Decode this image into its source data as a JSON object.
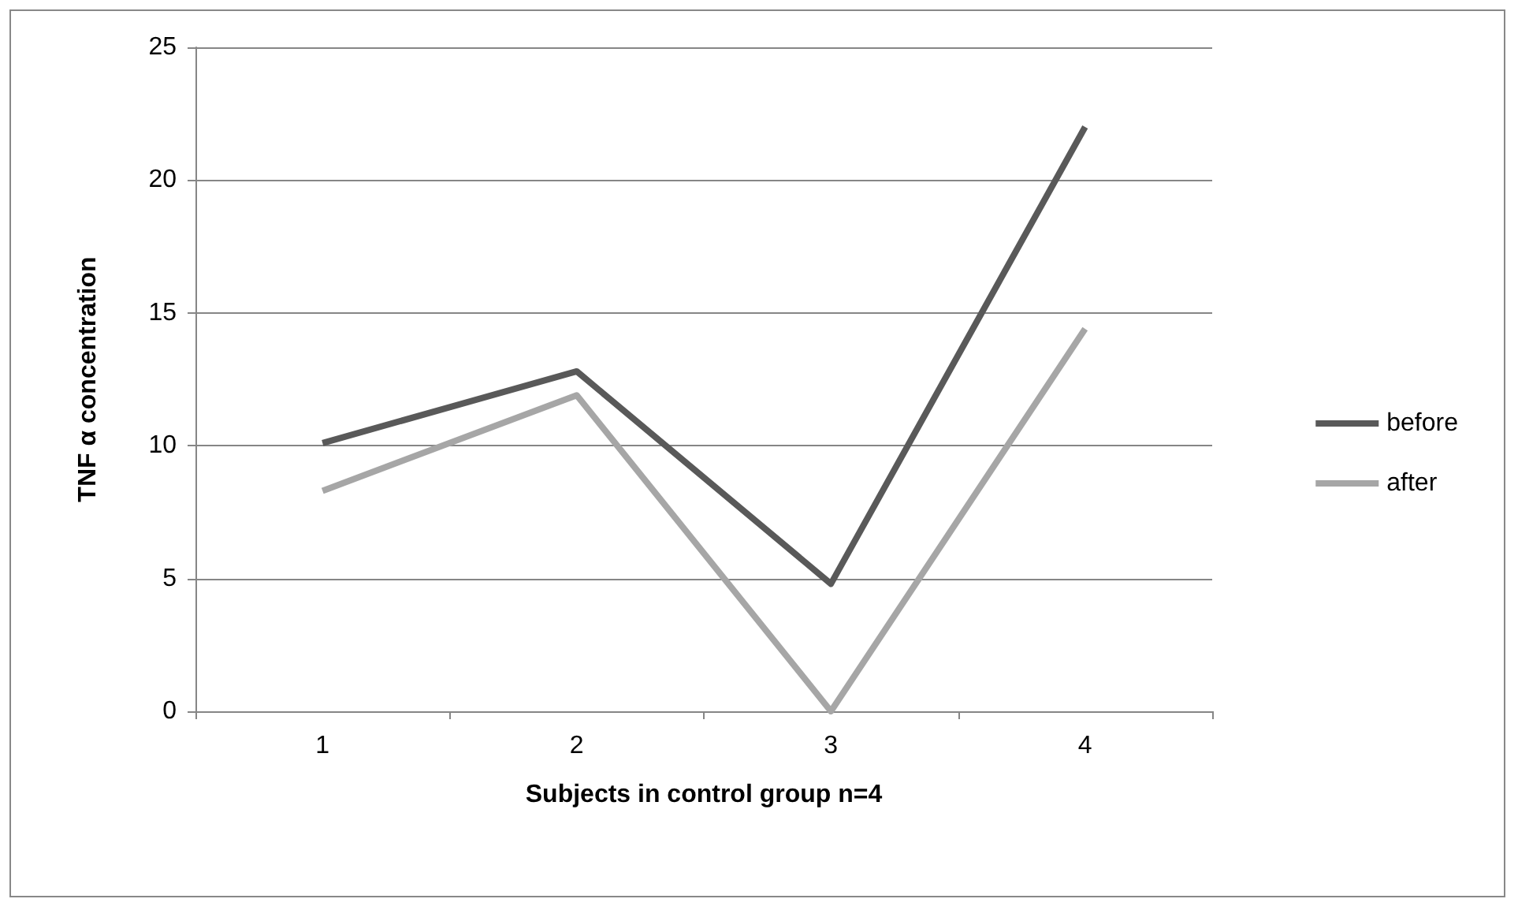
{
  "chart_data": {
    "type": "line",
    "xlabel": "Subjects in control group n=4",
    "ylabel": "TNF α concentration",
    "categories": [
      "1",
      "2",
      "3",
      "4"
    ],
    "series": [
      {
        "name": "before",
        "color": "#595959",
        "values": [
          10.1,
          12.8,
          4.8,
          22
        ]
      },
      {
        "name": "after",
        "color": "#a6a6a6",
        "values": [
          8.3,
          11.9,
          0,
          14.4
        ]
      }
    ],
    "ylim": [
      0,
      25
    ],
    "yticks": [
      0,
      5,
      10,
      15,
      20,
      25
    ],
    "grid": "y",
    "legend": "right",
    "marker": "none"
  }
}
